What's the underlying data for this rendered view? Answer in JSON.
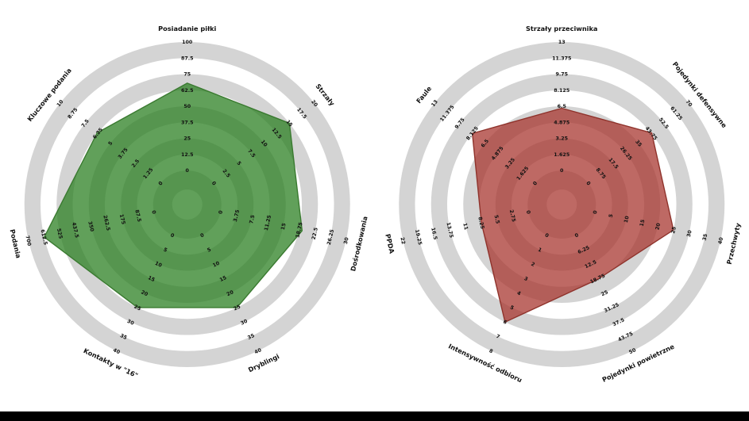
{
  "page": {
    "background": "#ffffff",
    "bottom_bar_color": "#000000"
  },
  "chart_data": [
    {
      "type": "radar",
      "title": "",
      "legend": "none",
      "grid": "concentric-rings",
      "num_rings": 8,
      "ring_color_odd": "#ffffff",
      "ring_color_even": "#d4d4d4",
      "fill_color": "rgba(44,128,35,0.75)",
      "edge_color": "#3a7a30",
      "params": [
        {
          "label": "Posiadanie piłki",
          "min": 0,
          "max": 100,
          "value": 68
        },
        {
          "label": "Strzały",
          "min": 0,
          "max": 20,
          "value": 15
        },
        {
          "label": "Dośrodkowania",
          "min": 0,
          "max": 30,
          "value": 19.5
        },
        {
          "label": "Dryblingi",
          "min": 0,
          "max": 40,
          "value": 25
        },
        {
          "label": "Kontakty w \"16\"",
          "min": 0,
          "max": 40,
          "value": 25
        },
        {
          "label": "Podania",
          "min": 0,
          "max": 700,
          "value": 612
        },
        {
          "label": "Kluczowe podania",
          "min": 0,
          "max": 10,
          "value": 6.3
        }
      ]
    },
    {
      "type": "radar",
      "title": "",
      "legend": "none",
      "grid": "concentric-rings",
      "num_rings": 8,
      "ring_color_odd": "#ffffff",
      "ring_color_even": "#d4d4d4",
      "fill_color": "rgba(168,55,48,0.75)",
      "edge_color": "#8f332c",
      "params": [
        {
          "label": "Strzały przeciwnika",
          "min": 0,
          "max": 13,
          "value": 6.3
        },
        {
          "label": "Pojedynki defensywne",
          "min": 0,
          "max": 70,
          "value": 44
        },
        {
          "label": "Przechwyty",
          "min": 0,
          "max": 40,
          "value": 25
        },
        {
          "label": "Pojedynki powietrzne",
          "min": 0,
          "max": 50,
          "value": 19
        },
        {
          "label": "Intensywność odbioru",
          "min": 0,
          "max": 8,
          "value": 6
        },
        {
          "label": "PPDA",
          "min": 0,
          "max": 22,
          "value": 8.25
        },
        {
          "label": "Faule",
          "min": 0,
          "max": 13,
          "value": 8.1
        }
      ]
    }
  ]
}
